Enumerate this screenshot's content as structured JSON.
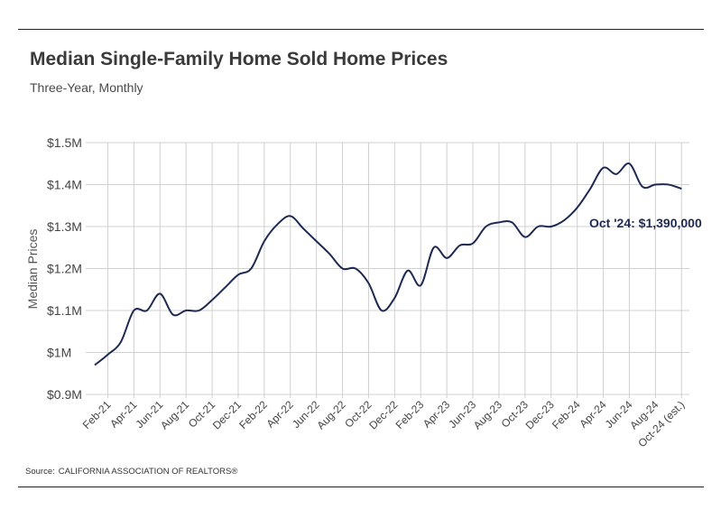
{
  "header": {
    "title": "Median Single-Family Home Sold Home Prices",
    "subtitle": "Three-Year, Monthly"
  },
  "footer": {
    "source_label": "Source:",
    "source_text": "CALIFORNIA ASSOCIATION OF REALTORS®"
  },
  "colors": {
    "line": "#1e2a52",
    "grid": "#d0d0d0",
    "rule": "#222222"
  },
  "chart_data": {
    "type": "line",
    "title": "Median Single-Family Home Sold Home Prices",
    "subtitle": "Three-Year, Monthly",
    "ylabel": "Median Prices",
    "xlabel": "",
    "grid": true,
    "ylim": [
      900000,
      1500000
    ],
    "y_ticks": [
      {
        "value": 1500000,
        "label": "$1.5M"
      },
      {
        "value": 1400000,
        "label": "$1.4M"
      },
      {
        "value": 1300000,
        "label": "$1.3M"
      },
      {
        "value": 1200000,
        "label": "$1.2M"
      },
      {
        "value": 1100000,
        "label": "$1.1M"
      },
      {
        "value": 1000000,
        "label": "$1M"
      },
      {
        "value": 900000,
        "label": "$0.9M"
      }
    ],
    "x_tick_labels": [
      "Feb-21",
      "Apr-21",
      "Jun-21",
      "Aug-21",
      "Oct-21",
      "Dec-21",
      "Feb-22",
      "Apr-22",
      "Jun-22",
      "Aug-22",
      "Oct-22",
      "Dec-22",
      "Feb-23",
      "Apr-23",
      "Jun-23",
      "Aug-23",
      "Oct-23",
      "Dec-23",
      "Feb-24",
      "Apr-24",
      "Jun-24",
      "Aug-24",
      "Oct-24 (est.)"
    ],
    "months": [
      "Jan-21",
      "Feb-21",
      "Mar-21",
      "Apr-21",
      "May-21",
      "Jun-21",
      "Jul-21",
      "Aug-21",
      "Sep-21",
      "Oct-21",
      "Nov-21",
      "Dec-21",
      "Jan-22",
      "Feb-22",
      "Mar-22",
      "Apr-22",
      "May-22",
      "Jun-22",
      "Jul-22",
      "Aug-22",
      "Sep-22",
      "Oct-22",
      "Nov-22",
      "Dec-22",
      "Jan-23",
      "Feb-23",
      "Mar-23",
      "Apr-23",
      "May-23",
      "Jun-23",
      "Jul-23",
      "Aug-23",
      "Sep-23",
      "Oct-23",
      "Nov-23",
      "Dec-23",
      "Jan-24",
      "Feb-24",
      "Mar-24",
      "Apr-24",
      "May-24",
      "Jun-24",
      "Jul-24",
      "Aug-24",
      "Sep-24",
      "Oct-24"
    ],
    "values": [
      970000,
      995000,
      1025000,
      1100000,
      1100000,
      1140000,
      1090000,
      1100000,
      1100000,
      1125000,
      1155000,
      1185000,
      1200000,
      1265000,
      1305000,
      1325000,
      1295000,
      1265000,
      1235000,
      1200000,
      1200000,
      1165000,
      1100000,
      1130000,
      1195000,
      1160000,
      1250000,
      1225000,
      1255000,
      1260000,
      1300000,
      1310000,
      1310000,
      1275000,
      1300000,
      1300000,
      1315000,
      1345000,
      1390000,
      1440000,
      1425000,
      1450000,
      1395000,
      1400000,
      1400000,
      1390000
    ],
    "annotation": "Oct '24: $1,390,000"
  }
}
